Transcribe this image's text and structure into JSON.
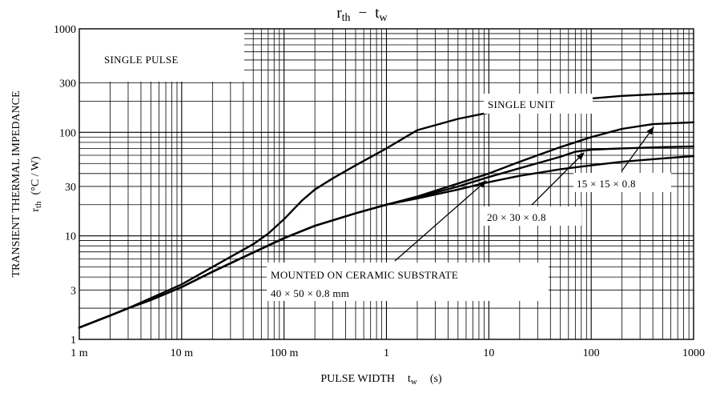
{
  "chart_data": {
    "type": "line",
    "title_main": "r",
    "title_main_sub": "th",
    "title_dash": "−",
    "title_second": "t",
    "title_second_sub": "w",
    "xlabel_text": "PULSE WIDTH",
    "xlabel_sym": "t",
    "xlabel_sub": "w",
    "xlabel_unit": "(s)",
    "ylabel_line1": "TRANSIENT THERMAL IMPEDANCE",
    "ylabel_sym": "r",
    "ylabel_sub": "th",
    "ylabel_unit": "(°C / W)",
    "x_scale": "log",
    "y_scale": "log",
    "xlim": [
      0.001,
      1000
    ],
    "ylim": [
      1,
      1000
    ],
    "grid": true,
    "x_ticks": [
      {
        "value": 0.001,
        "label": "1 m"
      },
      {
        "value": 0.01,
        "label": "10 m"
      },
      {
        "value": 0.1,
        "label": "100 m"
      },
      {
        "value": 1,
        "label": "1"
      },
      {
        "value": 10,
        "label": "10"
      },
      {
        "value": 100,
        "label": "100"
      },
      {
        "value": 1000,
        "label": "1000"
      }
    ],
    "y_ticks": [
      {
        "value": 1,
        "label": "1"
      },
      {
        "value": 3,
        "label": "3"
      },
      {
        "value": 10,
        "label": "10"
      },
      {
        "value": 30,
        "label": "30"
      },
      {
        "value": 100,
        "label": "100"
      },
      {
        "value": 300,
        "label": "300"
      },
      {
        "value": 1000,
        "label": "1000"
      }
    ],
    "series": [
      {
        "name": "SINGLE UNIT",
        "x": [
          0.001,
          0.002,
          0.003,
          0.005,
          0.01,
          0.02,
          0.05,
          0.07,
          0.1,
          0.15,
          0.2,
          0.3,
          0.5,
          1,
          2,
          5,
          10,
          20,
          50,
          100,
          200,
          500,
          1000
        ],
        "y": [
          1.3,
          1.7,
          2.0,
          2.5,
          3.4,
          5.0,
          8.3,
          10.5,
          14.5,
          22,
          28,
          36,
          48,
          70,
          105,
          135,
          155,
          175,
          195,
          212,
          225,
          235,
          240
        ]
      },
      {
        "name": "15 × 15 × 0.8",
        "x": [
          0.001,
          0.002,
          0.003,
          0.005,
          0.01,
          0.02,
          0.05,
          0.1,
          0.2,
          0.5,
          1,
          2,
          5,
          10,
          20,
          50,
          100,
          200,
          400,
          1000
        ],
        "y": [
          1.3,
          1.7,
          2.0,
          2.4,
          3.2,
          4.5,
          6.9,
          9.5,
          12.5,
          16.5,
          20,
          24,
          32,
          40,
          52,
          72,
          90,
          108,
          120,
          125
        ]
      },
      {
        "name": "20 × 30 × 0.8",
        "x": [
          0.001,
          0.002,
          0.003,
          0.005,
          0.01,
          0.02,
          0.05,
          0.1,
          0.2,
          0.5,
          1,
          2,
          5,
          10,
          20,
          50,
          70,
          100,
          200,
          500,
          1000
        ],
        "y": [
          1.3,
          1.7,
          2.0,
          2.4,
          3.2,
          4.5,
          6.9,
          9.5,
          12.5,
          16.5,
          20,
          23.5,
          30,
          37,
          45,
          58,
          65,
          68,
          70,
          72,
          73
        ]
      },
      {
        "name": "40 × 50 × 0.8 mm",
        "x": [
          0.001,
          0.002,
          0.003,
          0.005,
          0.01,
          0.02,
          0.05,
          0.1,
          0.2,
          0.5,
          1,
          2,
          5,
          10,
          20,
          50,
          100,
          200,
          500,
          1000
        ],
        "y": [
          1.3,
          1.7,
          2.0,
          2.4,
          3.2,
          4.5,
          6.9,
          9.5,
          12.5,
          16.5,
          20,
          23,
          28,
          33,
          38,
          44,
          48,
          52,
          56,
          59
        ]
      }
    ],
    "annotations": {
      "single_pulse": "SINGLE PULSE",
      "single_unit": "SINGLE UNIT",
      "sub15_a": "15 × 15 × 0.8",
      "sub20_a": "20 × 30 × 0.8",
      "mounted": "MOUNTED ON CERAMIC SUBSTRATE",
      "sub40_a": "40 × 50 × 0.8 mm"
    }
  }
}
